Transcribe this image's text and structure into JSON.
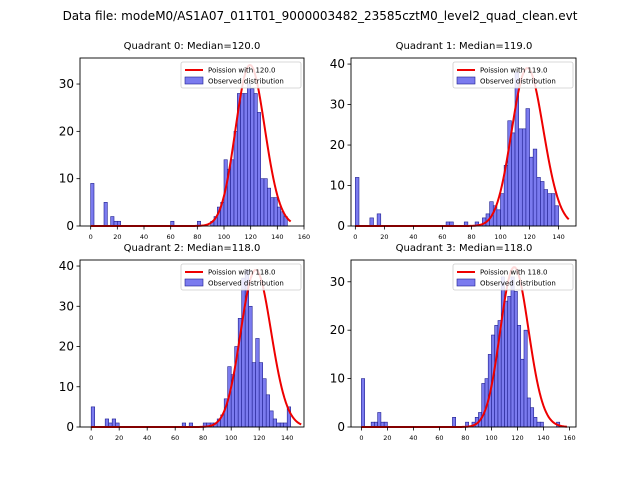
{
  "chart_data": {
    "title": "Data file: modeM0/AS1A07_011T01_9000003482_23585cztM0_level2_quad_clean.evt",
    "panels": [
      {
        "type": "bar",
        "title": "Quadrant 0: Median=120.0",
        "bin_width": 2.5,
        "xlim": [
          -8,
          160
        ],
        "ylim": [
          0,
          35.5
        ],
        "xticks": [
          0,
          20,
          40,
          60,
          80,
          100,
          120,
          140,
          160
        ],
        "yticks": [
          0,
          10,
          20,
          30
        ],
        "poisson_mean": 120.0,
        "poisson_peak": 34,
        "poisson_range": [
          0,
          150
        ],
        "legend": [
          "Poission with 120.0",
          "Observed distribution"
        ],
        "bins": [
          [
            0,
            9
          ],
          [
            10,
            5
          ],
          [
            15,
            2
          ],
          [
            17.5,
            1
          ],
          [
            20,
            1
          ],
          [
            60,
            1
          ],
          [
            80,
            1
          ],
          [
            90,
            1
          ],
          [
            92.5,
            2
          ],
          [
            95,
            4
          ],
          [
            97.5,
            5
          ],
          [
            100,
            14
          ],
          [
            102.5,
            12
          ],
          [
            105,
            14
          ],
          [
            107.5,
            20
          ],
          [
            110,
            28
          ],
          [
            112.5,
            28
          ],
          [
            115,
            28
          ],
          [
            117.5,
            30
          ],
          [
            120,
            29
          ],
          [
            122.5,
            28
          ],
          [
            125,
            24
          ],
          [
            127.5,
            10
          ],
          [
            130,
            10
          ],
          [
            132.5,
            8
          ],
          [
            135,
            6
          ],
          [
            137.5,
            6
          ],
          [
            140,
            4
          ],
          [
            142.5,
            3
          ],
          [
            145,
            2
          ]
        ]
      },
      {
        "type": "bar",
        "title": "Quadrant 1: Median=119.0",
        "bin_width": 2.5,
        "xlim": [
          -3,
          152
        ],
        "ylim": [
          0,
          41.5
        ],
        "xticks": [
          0,
          20,
          40,
          60,
          80,
          100,
          120,
          140
        ],
        "yticks": [
          0,
          10,
          20,
          30,
          40
        ],
        "poisson_mean": 119.0,
        "poisson_peak": 39,
        "poisson_range": [
          0,
          147
        ],
        "legend": [
          "Poission with 119.0",
          "Observed distribution"
        ],
        "bins": [
          [
            0,
            12
          ],
          [
            10,
            2
          ],
          [
            15,
            3
          ],
          [
            62.5,
            1
          ],
          [
            65,
            1
          ],
          [
            75,
            1
          ],
          [
            82.5,
            1
          ],
          [
            87.5,
            2
          ],
          [
            90,
            3
          ],
          [
            92.5,
            6
          ],
          [
            95,
            5
          ],
          [
            97.5,
            4
          ],
          [
            100,
            8
          ],
          [
            102.5,
            15
          ],
          [
            105,
            26
          ],
          [
            107.5,
            23
          ],
          [
            110,
            38
          ],
          [
            112.5,
            24
          ],
          [
            115,
            24
          ],
          [
            117.5,
            29
          ],
          [
            120,
            17
          ],
          [
            122.5,
            19
          ],
          [
            125,
            12
          ],
          [
            127.5,
            11
          ],
          [
            130,
            9
          ],
          [
            132.5,
            8
          ],
          [
            135,
            8
          ],
          [
            137.5,
            5
          ]
        ]
      },
      {
        "type": "bar",
        "title": "Quadrant 2: Median=118.0",
        "bin_width": 2.5,
        "xlim": [
          -8,
          152
        ],
        "ylim": [
          0,
          41.5
        ],
        "xticks": [
          0,
          20,
          40,
          60,
          80,
          100,
          120,
          140
        ],
        "yticks": [
          0,
          10,
          20,
          30,
          40
        ],
        "poisson_mean": 118.0,
        "poisson_peak": 39,
        "poisson_range": [
          0,
          150
        ],
        "legend": [
          "Poission with 118.0",
          "Observed distribution"
        ],
        "bins": [
          [
            0,
            5
          ],
          [
            10,
            2
          ],
          [
            12.5,
            1
          ],
          [
            15,
            2
          ],
          [
            17.5,
            1
          ],
          [
            65,
            1
          ],
          [
            70,
            1
          ],
          [
            80,
            1
          ],
          [
            82.5,
            1
          ],
          [
            85,
            1
          ],
          [
            87.5,
            1
          ],
          [
            90,
            2
          ],
          [
            92.5,
            3
          ],
          [
            95,
            7
          ],
          [
            97.5,
            15
          ],
          [
            100,
            13
          ],
          [
            102.5,
            20
          ],
          [
            105,
            27
          ],
          [
            107.5,
            37
          ],
          [
            110,
            39
          ],
          [
            112.5,
            30
          ],
          [
            115,
            16
          ],
          [
            117.5,
            22
          ],
          [
            120,
            16
          ],
          [
            122.5,
            12
          ],
          [
            125,
            8
          ],
          [
            127.5,
            4
          ],
          [
            130,
            2
          ],
          [
            132.5,
            1
          ],
          [
            135,
            1
          ],
          [
            137.5,
            1
          ],
          [
            140,
            5
          ]
        ]
      },
      {
        "type": "bar",
        "title": "Quadrant 3: Median=118.0",
        "bin_width": 2.5,
        "xlim": [
          -8,
          165
        ],
        "ylim": [
          0,
          34.5
        ],
        "xticks": [
          0,
          20,
          40,
          60,
          80,
          100,
          120,
          140,
          160
        ],
        "yticks": [
          0,
          10,
          20,
          30
        ],
        "poisson_mean": 118.0,
        "poisson_peak": 33,
        "poisson_range": [
          0,
          158
        ],
        "legend": [
          "Poission with 118.0",
          "Observed distribution"
        ],
        "bins": [
          [
            0,
            10
          ],
          [
            7.5,
            1
          ],
          [
            10,
            1
          ],
          [
            12.5,
            3
          ],
          [
            15,
            1
          ],
          [
            17.5,
            1
          ],
          [
            70,
            2
          ],
          [
            80,
            1
          ],
          [
            85,
            1
          ],
          [
            87.5,
            2
          ],
          [
            90,
            3
          ],
          [
            92.5,
            9
          ],
          [
            95,
            10
          ],
          [
            97.5,
            15
          ],
          [
            100,
            19
          ],
          [
            102.5,
            21
          ],
          [
            105,
            22
          ],
          [
            107.5,
            31
          ],
          [
            110,
            26
          ],
          [
            112.5,
            27
          ],
          [
            115,
            31
          ],
          [
            117.5,
            28
          ],
          [
            120,
            21
          ],
          [
            122.5,
            14
          ],
          [
            125,
            20
          ],
          [
            127.5,
            6
          ],
          [
            130,
            4
          ],
          [
            132.5,
            2
          ],
          [
            135,
            1
          ],
          [
            137.5,
            1
          ],
          [
            150,
            1
          ]
        ]
      }
    ]
  }
}
